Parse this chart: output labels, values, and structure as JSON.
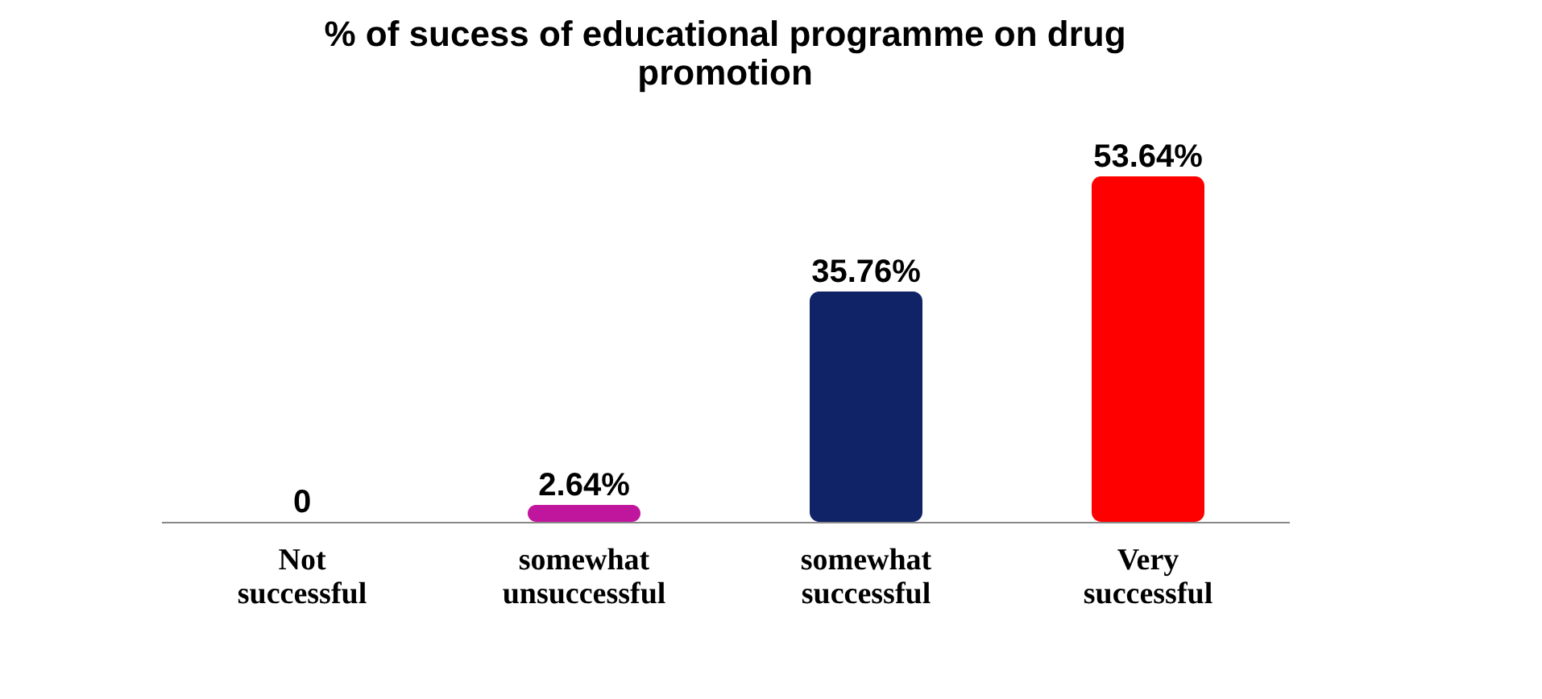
{
  "chart_data": {
    "type": "bar",
    "title": "% of sucess of educational programme on drug promotion",
    "categories": [
      "Not successful",
      "somewhat unsuccessful",
      "somewhat successful",
      "Very successful"
    ],
    "values": [
      0,
      2.64,
      35.76,
      53.64
    ],
    "colors": [
      "#cc0000",
      "#c0169e",
      "#0f2366",
      "#ff0000"
    ],
    "value_labels": [
      "0",
      "2.64%",
      "35.76%",
      "53.64%"
    ]
  }
}
